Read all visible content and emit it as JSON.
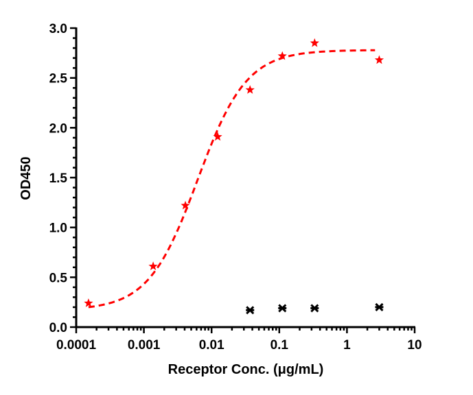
{
  "chart_data": {
    "type": "scatter",
    "title": "",
    "xlabel": "Receptor Conc. (μg/mL)",
    "ylabel": "OD450",
    "xscale": "log",
    "xlim": [
      0.0001,
      10
    ],
    "ylim": [
      0,
      3.0
    ],
    "x_ticks": [
      0.0001,
      0.001,
      0.01,
      0.1,
      1,
      10
    ],
    "x_tick_labels": [
      "0.0001",
      "0.001",
      "0.01",
      "0.1",
      "1",
      "10"
    ],
    "y_ticks": [
      0,
      0.5,
      1.0,
      1.5,
      2.0,
      2.5,
      3.0
    ],
    "y_tick_labels": [
      "0.0",
      "0.5",
      "1.0",
      "1.5",
      "2.0",
      "2.5",
      "3.0"
    ],
    "grid": false,
    "legend": "none",
    "series": [
      {
        "marker": "star",
        "color": "#ff0000",
        "x": [
          0.000152,
          0.00137,
          0.0041,
          0.0123,
          0.037,
          0.111,
          0.333,
          3
        ],
        "y": [
          0.24,
          0.61,
          1.22,
          1.91,
          2.38,
          2.72,
          2.85,
          2.68
        ],
        "fit": {
          "type": "4PL",
          "style": "dashed",
          "bottom": 0.17,
          "top": 2.78,
          "ec50": 0.0062,
          "hill": 1.2,
          "x_range": [
            0.000152,
            2.6
          ]
        }
      },
      {
        "marker": "x",
        "color": "#000000",
        "x": [
          0.037,
          0.111,
          0.333,
          3
        ],
        "y": [
          0.17,
          0.19,
          0.19,
          0.2
        ]
      }
    ]
  }
}
